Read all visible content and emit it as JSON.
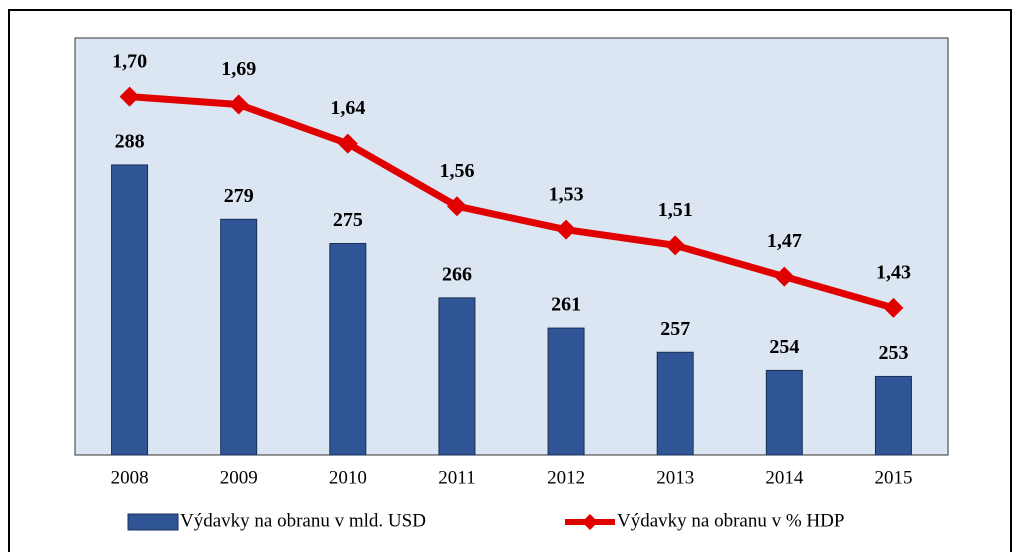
{
  "chart_data": {
    "type": "bar_line",
    "categories": [
      "2008",
      "2009",
      "2010",
      "2011",
      "2012",
      "2013",
      "2014",
      "2015"
    ],
    "series": [
      {
        "name": "Výdavky na obranu v mld. USD",
        "color": "#2f5597",
        "type": "bar",
        "values": [
          288,
          279,
          275,
          266,
          261,
          257,
          254,
          253
        ]
      },
      {
        "name": "Výdavky na obranu v % HDP",
        "color": "#e00000",
        "type": "line",
        "axis": "y2",
        "values": [
          1.7,
          1.69,
          1.64,
          1.56,
          1.53,
          1.51,
          1.47,
          1.43
        ],
        "value_labels": [
          "1,70",
          "1,69",
          "1,64",
          "1,56",
          "1,53",
          "1,51",
          "1,47",
          "1,43"
        ]
      }
    ],
    "ylim": [
      240,
      309
    ],
    "y2lim": [
      1.242,
      1.775
    ]
  }
}
